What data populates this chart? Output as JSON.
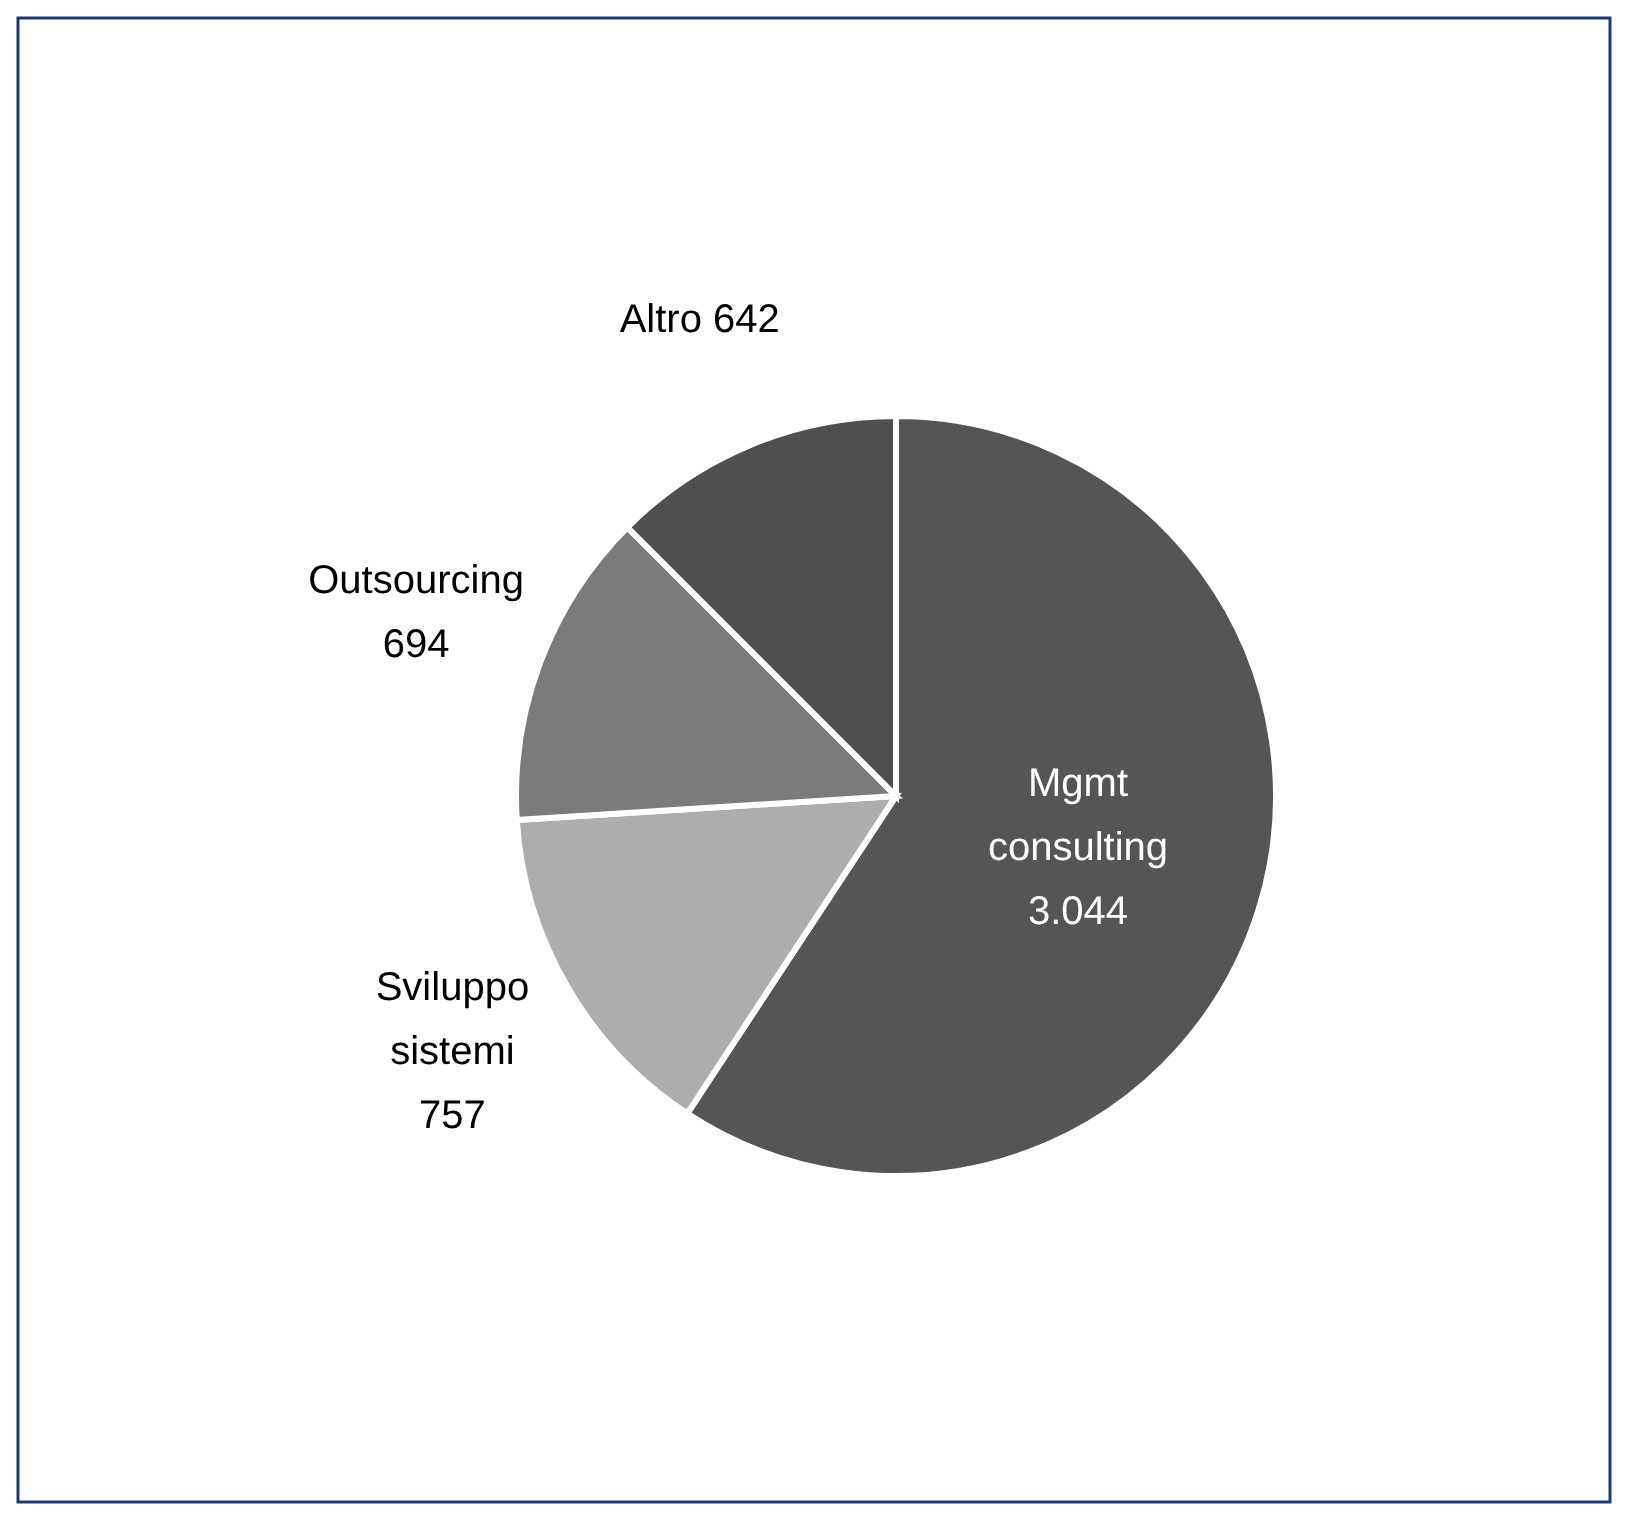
{
  "chart_data": {
    "type": "pie",
    "categories": [
      "Mgmt consulting",
      "Sviluppo sistemi",
      "Outsourcing",
      "Altro"
    ],
    "values": [
      3044,
      757,
      694,
      642
    ],
    "value_labels": [
      "3.044",
      "757",
      "694",
      "642"
    ],
    "colors": [
      "#555555",
      "#adadad",
      "#7b7b7b",
      "#4f4f4f"
    ]
  }
}
